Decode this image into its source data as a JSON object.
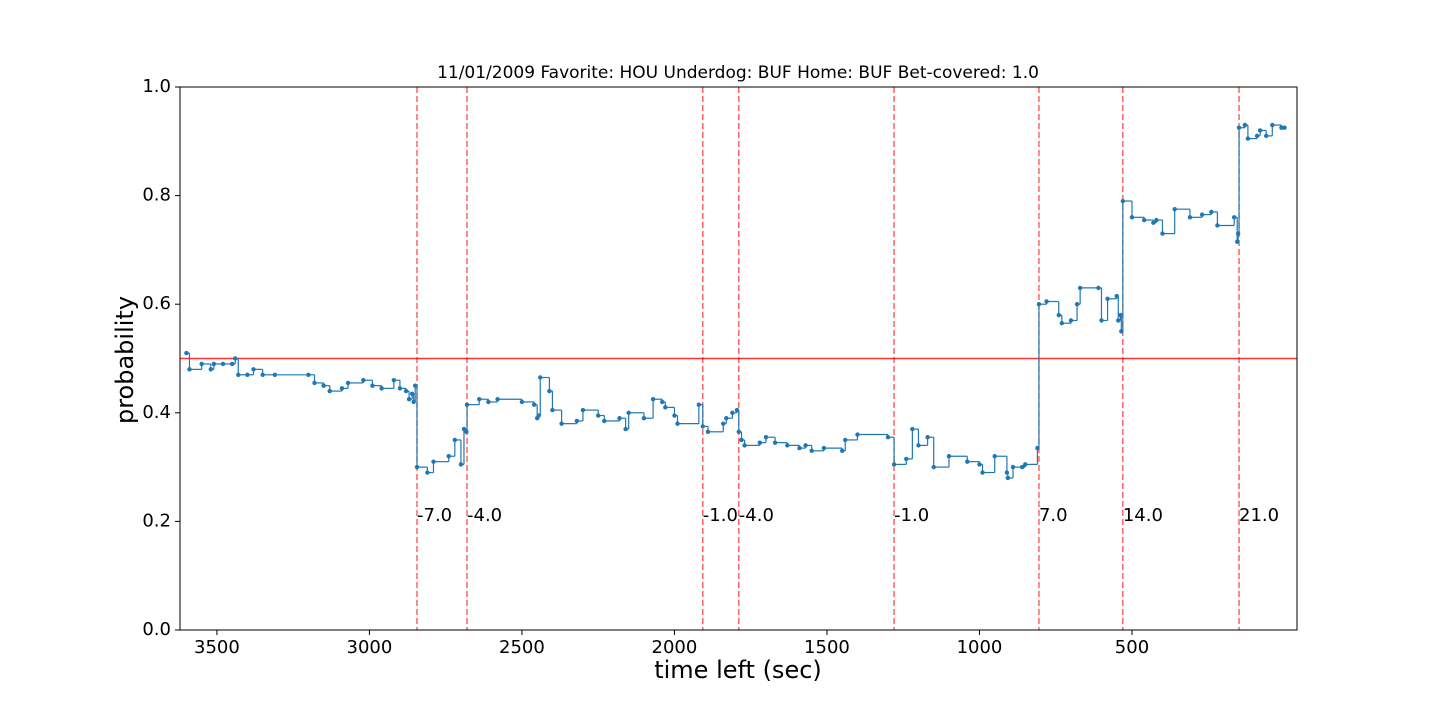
{
  "chart_data": {
    "type": "step",
    "title": "11/01/2009 Favorite: HOU Underdog: BUF Home: BUF Bet-covered: 1.0",
    "x_label": "time left (sec)",
    "y_label": "probability",
    "xlim": [
      3621,
      -41
    ],
    "ylim": [
      0,
      1
    ],
    "xticks": [
      3500,
      3000,
      2500,
      2000,
      1500,
      1000,
      500
    ],
    "yticks": [
      {
        "value": 0,
        "label": "0.0"
      },
      {
        "value": 0.2,
        "label": "0.2"
      },
      {
        "value": 0.4,
        "label": "0.4"
      },
      {
        "value": 0.6,
        "label": "0.6"
      },
      {
        "value": 0.8,
        "label": "0.8"
      },
      {
        "value": 1,
        "label": "1.0"
      }
    ],
    "color": "#1f77b4",
    "x": [
      3600,
      3590,
      3550,
      3520,
      3510,
      3480,
      3450,
      3440,
      3430,
      3400,
      3380,
      3350,
      3310,
      3200,
      3180,
      3150,
      3130,
      3090,
      3070,
      3020,
      2990,
      2960,
      2920,
      2900,
      2880,
      2870,
      2860,
      2855,
      2850,
      2844,
      2810,
      2790,
      2740,
      2720,
      2700,
      2690,
      2682,
      2680,
      2640,
      2610,
      2580,
      2500,
      2460,
      2450,
      2445,
      2440,
      2410,
      2400,
      2370,
      2320,
      2300,
      2250,
      2230,
      2180,
      2160,
      2150,
      2100,
      2070,
      2040,
      2030,
      2000,
      1990,
      1920,
      1907,
      1890,
      1840,
      1830,
      1810,
      1795,
      1789,
      1780,
      1770,
      1720,
      1700,
      1670,
      1630,
      1590,
      1570,
      1550,
      1510,
      1450,
      1440,
      1400,
      1300,
      1280,
      1240,
      1220,
      1200,
      1170,
      1150,
      1100,
      1040,
      1000,
      990,
      950,
      910,
      907,
      890,
      860,
      850,
      810,
      805,
      780,
      740,
      730,
      700,
      680,
      670,
      610,
      600,
      580,
      550,
      545,
      538,
      535,
      530,
      500,
      460,
      430,
      420,
      400,
      360,
      310,
      270,
      240,
      220,
      165,
      155,
      152,
      149,
      130,
      120,
      90,
      80,
      60,
      40,
      10,
      0
    ],
    "values": [
      0.51,
      0.48,
      0.49,
      0.48,
      0.49,
      0.49,
      0.49,
      0.5,
      0.47,
      0.47,
      0.48,
      0.47,
      0.47,
      0.47,
      0.455,
      0.45,
      0.44,
      0.445,
      0.455,
      0.46,
      0.45,
      0.445,
      0.46,
      0.445,
      0.44,
      0.425,
      0.435,
      0.42,
      0.45,
      0.3,
      0.29,
      0.31,
      0.32,
      0.35,
      0.305,
      0.37,
      0.365,
      0.415,
      0.425,
      0.42,
      0.425,
      0.42,
      0.415,
      0.39,
      0.395,
      0.465,
      0.44,
      0.405,
      0.38,
      0.385,
      0.405,
      0.395,
      0.385,
      0.39,
      0.37,
      0.4,
      0.39,
      0.425,
      0.42,
      0.41,
      0.395,
      0.38,
      0.415,
      0.375,
      0.365,
      0.38,
      0.39,
      0.4,
      0.405,
      0.365,
      0.35,
      0.34,
      0.345,
      0.355,
      0.345,
      0.34,
      0.335,
      0.34,
      0.33,
      0.335,
      0.33,
      0.35,
      0.36,
      0.355,
      0.305,
      0.315,
      0.37,
      0.34,
      0.355,
      0.3,
      0.32,
      0.31,
      0.305,
      0.29,
      0.32,
      0.29,
      0.28,
      0.3,
      0.3,
      0.305,
      0.335,
      0.6,
      0.605,
      0.58,
      0.565,
      0.57,
      0.6,
      0.63,
      0.63,
      0.57,
      0.61,
      0.615,
      0.57,
      0.58,
      0.55,
      0.79,
      0.76,
      0.755,
      0.75,
      0.755,
      0.73,
      0.775,
      0.76,
      0.765,
      0.77,
      0.745,
      0.76,
      0.715,
      0.73,
      0.925,
      0.93,
      0.905,
      0.91,
      0.92,
      0.91,
      0.93,
      0.925,
      0.925
    ],
    "hline": 0.5,
    "ref_color": "#ff0000",
    "annotation_y": 0.21,
    "vlines": [
      {
        "x": 2844,
        "label": "-7.0"
      },
      {
        "x": 2680,
        "label": "-4.0"
      },
      {
        "x": 1907,
        "label": "-1.0"
      },
      {
        "x": 1789,
        "label": "-4.0"
      },
      {
        "x": 1280,
        "label": "-1.0"
      },
      {
        "x": 805,
        "label": "7.0"
      },
      {
        "x": 530,
        "label": "14.0"
      },
      {
        "x": 149,
        "label": "21.0"
      }
    ]
  }
}
